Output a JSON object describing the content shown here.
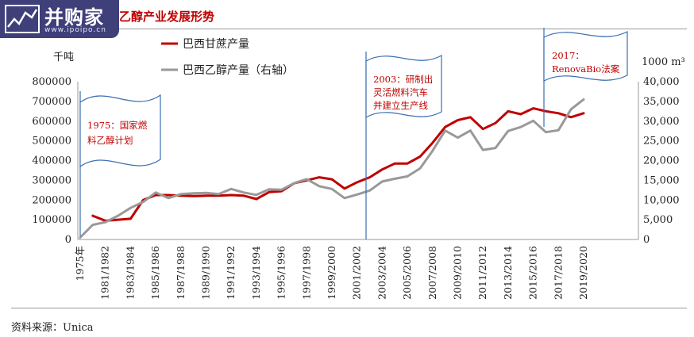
{
  "header": {
    "logo_text": "并购家",
    "logo_url": "www.ipoipo.cn",
    "title": "乙醇产业发展形势"
  },
  "source": "资料来源：Unica",
  "colors": {
    "sugarcane": "#c00000",
    "ethanol": "#999999",
    "annotation_text": "#c00000",
    "annotation_border": "#3b6fb0"
  },
  "chart_data": {
    "type": "line",
    "left_unit": "千吨",
    "right_unit": "1000 m³",
    "y_left_lim": [
      0,
      800000
    ],
    "y_right_lim": [
      0,
      40000
    ],
    "y_left_ticks": [
      "0",
      "100000",
      "200000",
      "300000",
      "400000",
      "500000",
      "600000",
      "700000",
      "800000"
    ],
    "y_right_ticks": [
      "0",
      "5,000",
      "10,000",
      "15,000",
      "20,000",
      "25,000",
      "30,000",
      "35,000",
      "40,000"
    ],
    "x_tick_labels": [
      "1975年",
      "1981/1982",
      "1983/1984",
      "1985/1986",
      "1987/1988",
      "1989/1990",
      "1991/1992",
      "1993/1994",
      "1995/1996",
      "1997/1998",
      "1999/2000",
      "2001/2002",
      "2003/2004",
      "2005/2006",
      "2007/2008",
      "2009/2010",
      "2011/2012",
      "2013/2014",
      "2015/2016",
      "2017/2018",
      "2019/2020"
    ],
    "legend": [
      "巴西甘蔗产量",
      "巴西乙醇产量（右轴）"
    ],
    "series": [
      {
        "name": "巴西甘蔗产量",
        "axis": "left",
        "values": [
          null,
          120000,
          95000,
          100000,
          105000,
          200000,
          225000,
          225000,
          222000,
          220000,
          222000,
          222000,
          225000,
          222000,
          205000,
          240000,
          245000,
          285000,
          300000,
          315000,
          305000,
          258000,
          290000,
          315000,
          355000,
          385000,
          385000,
          420000,
          490000,
          570000,
          605000,
          620000,
          560000,
          590000,
          650000,
          635000,
          665000,
          650000,
          640000,
          620000,
          640000
        ]
      },
      {
        "name": "巴西乙醇产量（右轴）",
        "axis": "right",
        "values": [
          500,
          3700,
          4400,
          6000,
          8000,
          9500,
          11900,
          10500,
          11500,
          11700,
          11800,
          11500,
          12800,
          11900,
          11300,
          12700,
          12600,
          14300,
          15300,
          13500,
          12800,
          10500,
          11400,
          12400,
          14700,
          15400,
          16000,
          18000,
          22500,
          27600,
          25800,
          27600,
          22700,
          23200,
          27500,
          28500,
          30100,
          27200,
          27700,
          33000,
          35500
        ]
      }
    ],
    "annotations": [
      {
        "lines": [
          "1975：国家燃",
          "料乙醇计划"
        ]
      },
      {
        "lines": [
          "2003：研制出",
          "灵活燃料汽车",
          "并建立生产线"
        ]
      },
      {
        "lines": [
          "2017：",
          "RenovaBio法案"
        ]
      }
    ]
  }
}
